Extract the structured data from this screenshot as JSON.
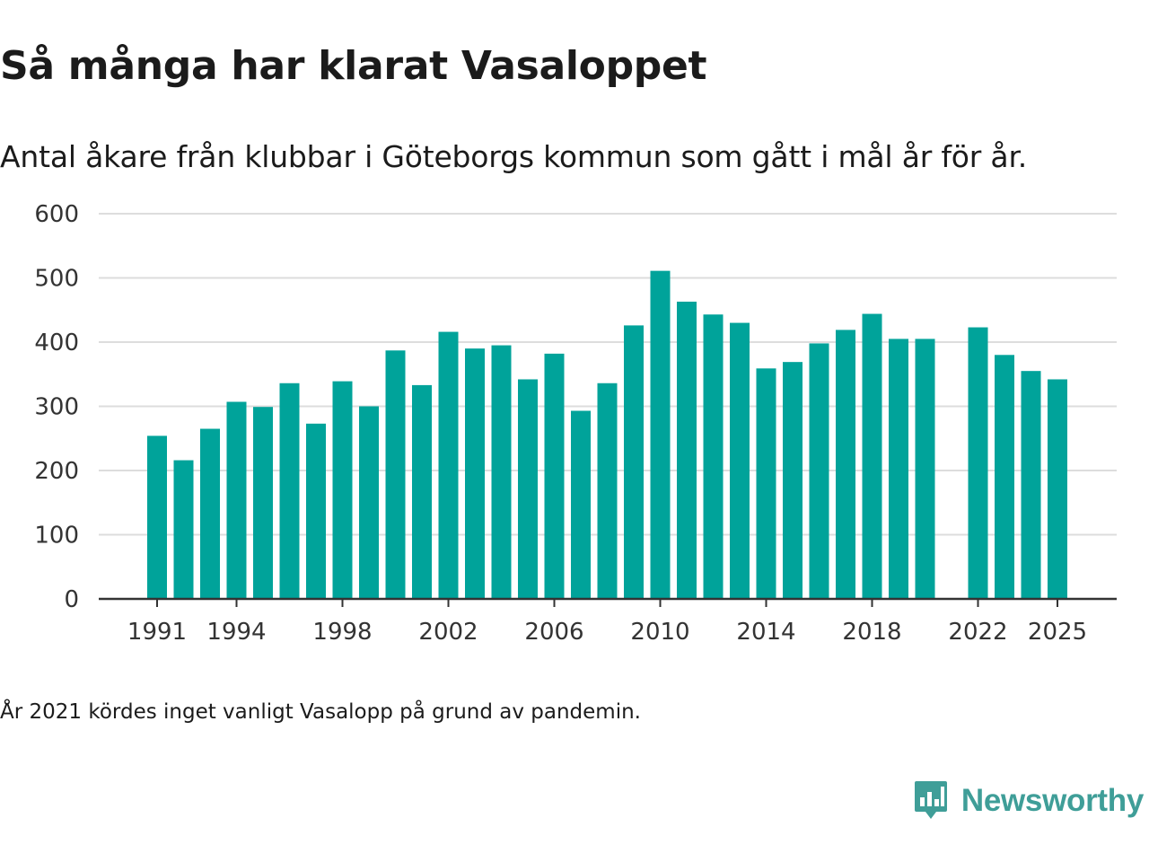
{
  "header": {
    "title": "Så många har klarat Vasaloppet",
    "subtitle": "Antal åkare från klubbar i Göteborgs kommun som gått i mål år för år."
  },
  "footer": {
    "note": "År 2021 kördes inget vanligt Vasalopp på grund av pandemin.",
    "brand": "Newsworthy"
  },
  "colors": {
    "bar": "#00a39a",
    "grid": "#dddddd",
    "axis": "#333333",
    "brand": "#3f9e98"
  },
  "chart_data": {
    "type": "bar",
    "title": "Så många har klarat Vasaloppet",
    "xlabel": "",
    "ylabel": "",
    "ylim": [
      0,
      600
    ],
    "yticks": [
      0,
      100,
      200,
      300,
      400,
      500,
      600
    ],
    "xticks": [
      "1991",
      "1994",
      "1998",
      "2002",
      "2006",
      "2010",
      "2014",
      "2018",
      "2022",
      "2025"
    ],
    "grid": true,
    "categories": [
      "1991",
      "1992",
      "1993",
      "1994",
      "1995",
      "1996",
      "1997",
      "1998",
      "1999",
      "2000",
      "2001",
      "2002",
      "2003",
      "2004",
      "2005",
      "2006",
      "2007",
      "2008",
      "2009",
      "2010",
      "2011",
      "2012",
      "2013",
      "2014",
      "2015",
      "2016",
      "2017",
      "2018",
      "2019",
      "2020",
      "2021",
      "2022",
      "2023",
      "2024",
      "2025"
    ],
    "values": [
      254,
      216,
      265,
      307,
      299,
      336,
      273,
      339,
      300,
      387,
      333,
      416,
      390,
      395,
      342,
      382,
      293,
      336,
      426,
      511,
      463,
      443,
      430,
      359,
      369,
      398,
      419,
      444,
      405,
      405,
      null,
      423,
      380,
      355,
      342
    ]
  }
}
